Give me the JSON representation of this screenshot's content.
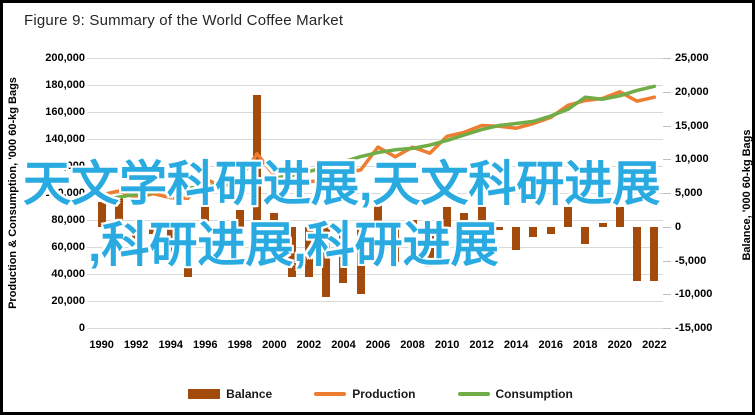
{
  "title": "Figure 9: Summary of the World Coffee Market",
  "watermark": {
    "line1": "天文学科研进展,天文科研进展",
    "line2": ",科研进展,科研进展",
    "color": "#29ABE2"
  },
  "colors": {
    "balance_bar": "#A34A0D",
    "production_line": "#ED7D31",
    "consumption_line": "#70AD47",
    "gridline": "#D9D9D9"
  },
  "chart_data": {
    "type": "bar",
    "subtype": "combo-bar-and-lines",
    "title": "Figure 9: Summary of the World Coffee Market",
    "x": [
      1990,
      1991,
      1992,
      1993,
      1994,
      1995,
      1996,
      1997,
      1998,
      1999,
      2000,
      2001,
      2002,
      2003,
      2004,
      2005,
      2006,
      2007,
      2008,
      2009,
      2010,
      2011,
      2012,
      2013,
      2014,
      2015,
      2016,
      2017,
      2018,
      2019,
      2020,
      2021,
      2022
    ],
    "x_tick_labels": [
      "1990",
      "1992",
      "1994",
      "1996",
      "1998",
      "2000",
      "2002",
      "2004",
      "2006",
      "2008",
      "2010",
      "2012",
      "2014",
      "2016",
      "2018",
      "2020",
      "2022"
    ],
    "series": [
      {
        "name": "Balance",
        "type": "bar",
        "axis": "right",
        "color": "#A34A0D",
        "values": [
          3700,
          4500,
          -2500,
          -1000,
          -5500,
          -7400,
          5500,
          -2000,
          2500,
          19500,
          2000,
          -7400,
          -7400,
          -10400,
          -8400,
          -9900,
          4000,
          -5200,
          1000,
          -6000,
          3000,
          2000,
          3000,
          -500,
          -3500,
          -1500,
          -1000,
          3000,
          -2500,
          500,
          3000,
          -8000,
          -8000
        ]
      },
      {
        "name": "Production",
        "type": "line",
        "axis": "left",
        "color": "#ED7D31",
        "values": [
          98700,
          101500,
          96500,
          99500,
          96500,
          96100,
          110500,
          104500,
          110500,
          129000,
          113000,
          105600,
          108600,
          108600,
          114600,
          117100,
          134000,
          126800,
          134000,
          129500,
          142000,
          145000,
          150000,
          149500,
          148000,
          151500,
          156000,
          165000,
          168500,
          170000,
          175000,
          168000,
          171000
        ]
      },
      {
        "name": "Consumption",
        "type": "line",
        "axis": "left",
        "color": "#70AD47",
        "values": [
          95000,
          97000,
          99000,
          100500,
          102000,
          103500,
          105000,
          106500,
          108000,
          109500,
          111000,
          113000,
          116000,
          119000,
          123000,
          127000,
          130000,
          132000,
          133000,
          135500,
          139000,
          143000,
          147000,
          150000,
          151500,
          153000,
          157000,
          162000,
          171000,
          169500,
          172000,
          176000,
          179000
        ]
      }
    ],
    "left_axis": {
      "label": "Production & Consumption, '000 60-kg Bags",
      "min": 0,
      "max": 200000,
      "step": 20000,
      "tick_labels": [
        "0",
        "20,000",
        "40,000",
        "60,000",
        "80,000",
        "100,000",
        "120,000",
        "140,000",
        "160,000",
        "180,000",
        "200,000"
      ]
    },
    "right_axis": {
      "label": "Balance, '000 60-kg Bags",
      "min": -15000,
      "max": 25000,
      "step": 5000,
      "tick_labels": [
        "-15,000",
        "-10,000",
        "-5,000",
        "0",
        "5,000",
        "10,000",
        "15,000",
        "20,000",
        "25,000"
      ]
    },
    "grid": true,
    "legend_position": "bottom"
  }
}
